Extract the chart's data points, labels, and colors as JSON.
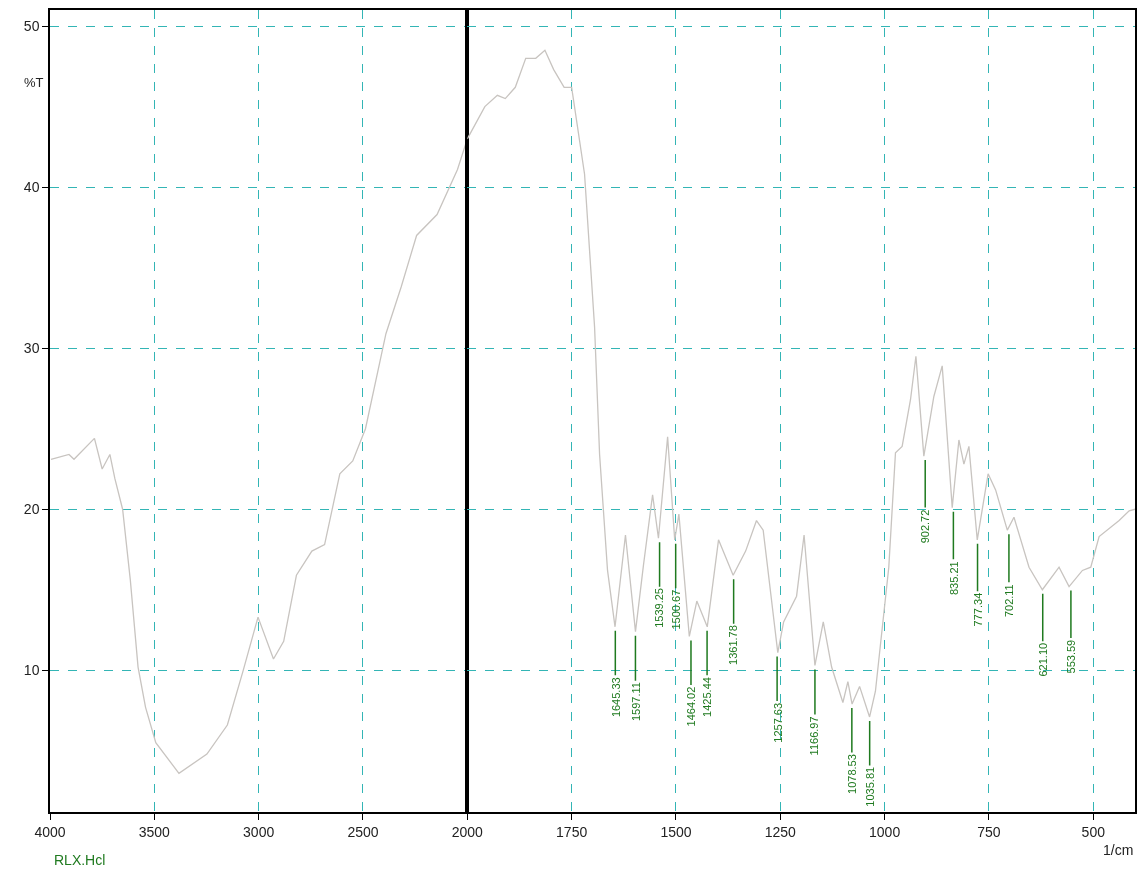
{
  "chart_data": [
    {
      "type": "line",
      "ylabel": "%T",
      "xlim": [
        4000,
        2000
      ],
      "xticks": [
        4000,
        3500,
        3000,
        2500
      ],
      "ylim": [
        1.2,
        51
      ],
      "yticks": [
        10,
        20,
        30,
        40,
        50
      ],
      "grid": true,
      "annotations": [
        "RLX.Hcl"
      ],
      "series": [
        {
          "color": "#c8c4c0",
          "x": [
            3995,
            3909,
            3885,
            3787,
            3750,
            3713,
            3689,
            3652,
            3615,
            3578,
            3542,
            3493,
            3382,
            3248,
            3150,
            3076,
            3003,
            2929,
            2880,
            2819,
            2745,
            2684,
            2611,
            2549,
            2488,
            2390,
            2317,
            2243,
            2145,
            2047,
            2000
          ],
          "values": [
            23.1,
            23.4,
            23.1,
            24.4,
            22.5,
            23.4,
            21.9,
            20.0,
            15.6,
            10.2,
            7.7,
            5.5,
            3.6,
            4.8,
            6.6,
            9.9,
            13.3,
            10.7,
            11.8,
            15.9,
            17.4,
            17.8,
            22.2,
            23.0,
            25.0,
            30.9,
            33.8,
            37.0,
            38.3,
            41.1,
            43.0
          ]
        }
      ]
    },
    {
      "type": "line",
      "xlabel": "1/cm",
      "xlim": [
        2000,
        400
      ],
      "xticks": [
        2000,
        1750,
        1500,
        1250,
        1000,
        750,
        500
      ],
      "ylim": [
        1.2,
        51
      ],
      "yticks": [
        10,
        20,
        30,
        40,
        50
      ],
      "grid": true,
      "tick_labels": "x",
      "annotations": [
        {
          "text": "1645.33",
          "x": 1645.33,
          "y": 12.7
        },
        {
          "text": "1597.11",
          "x": 1597.11,
          "y": 12.4
        },
        {
          "text": "1539.25",
          "x": 1539.25,
          "y": 18.2
        },
        {
          "text": "1500.67",
          "x": 1500.67,
          "y": 18.1
        },
        {
          "text": "1464.02",
          "x": 1464.02,
          "y": 12.1
        },
        {
          "text": "1425.44",
          "x": 1425.44,
          "y": 12.7
        },
        {
          "text": "1361.78",
          "x": 1361.78,
          "y": 15.9
        },
        {
          "text": "1257.63",
          "x": 1257.63,
          "y": 11.1
        },
        {
          "text": "1166.97",
          "x": 1166.97,
          "y": 10.3
        },
        {
          "text": "1078.53",
          "x": 1078.53,
          "y": 7.9
        },
        {
          "text": "1035.81",
          "x": 1035.81,
          "y": 7.1
        },
        {
          "text": "902.72",
          "x": 902.72,
          "y": 23.3
        },
        {
          "text": "835.21",
          "x": 835.21,
          "y": 20.1
        },
        {
          "text": "777.34",
          "x": 777.34,
          "y": 18.1
        },
        {
          "text": "702.11",
          "x": 702.11,
          "y": 18.7
        },
        {
          "text": "621.10",
          "x": 621.1,
          "y": 15.0
        },
        {
          "text": "553.59",
          "x": 553.59,
          "y": 15.2
        }
      ],
      "series": [
        {
          "color": "#c8c4c0",
          "x": [
            2000,
            1958,
            1928,
            1909,
            1885,
            1860,
            1836,
            1814,
            1793,
            1768,
            1750,
            1719,
            1695,
            1683,
            1664,
            1646,
            1621,
            1597,
            1578,
            1556,
            1542,
            1520,
            1503,
            1493,
            1468,
            1450,
            1425,
            1398,
            1363,
            1333,
            1307,
            1291,
            1256,
            1242,
            1211,
            1193,
            1167,
            1147,
            1127,
            1100,
            1088,
            1078,
            1060,
            1036,
            1022,
            990,
            974,
            958,
            938,
            925,
            906,
            882,
            862,
            838,
            822,
            810,
            798,
            778,
            752,
            734,
            706,
            690,
            654,
            622,
            582,
            558,
            526,
            506,
            486,
            438,
            414,
            400
          ],
          "values": [
            43.0,
            45.0,
            45.7,
            45.5,
            46.2,
            48.0,
            48.0,
            48.5,
            47.3,
            46.2,
            46.2,
            40.8,
            31.3,
            23.4,
            16.2,
            12.7,
            18.4,
            12.4,
            16.5,
            20.9,
            18.2,
            24.5,
            18.1,
            19.7,
            12.1,
            14.3,
            12.7,
            18.1,
            15.9,
            17.4,
            19.3,
            18.7,
            11.1,
            13.0,
            14.6,
            18.4,
            10.3,
            13.0,
            10.2,
            8.0,
            9.3,
            7.9,
            9.0,
            7.1,
            8.7,
            16.4,
            23.5,
            23.9,
            26.8,
            29.5,
            23.3,
            27.0,
            28.9,
            20.1,
            24.3,
            22.8,
            23.9,
            18.1,
            22.2,
            21.2,
            18.7,
            19.5,
            16.4,
            15.0,
            16.4,
            15.2,
            16.2,
            16.4,
            18.3,
            19.3,
            19.9,
            20.0
          ]
        }
      ]
    }
  ]
}
